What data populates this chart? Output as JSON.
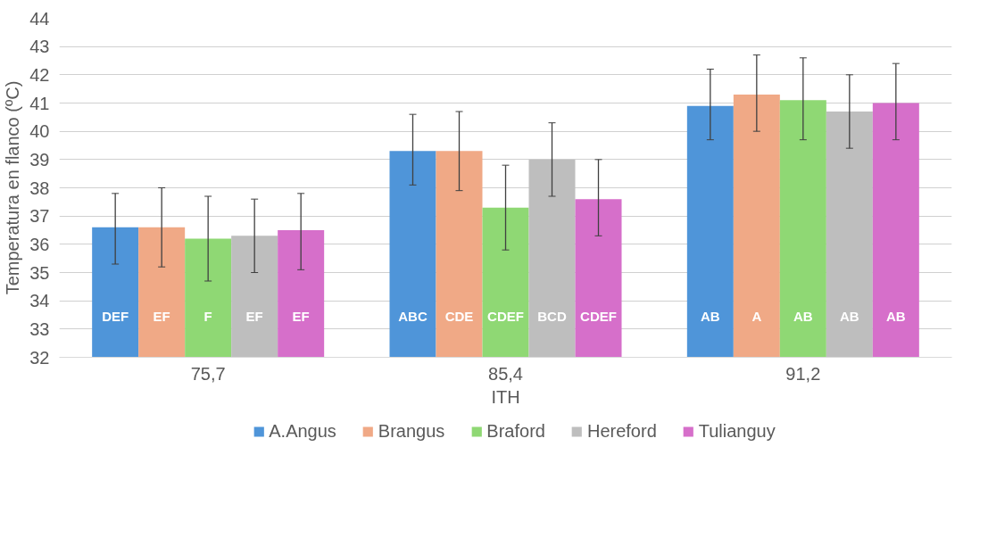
{
  "chart_data": {
    "type": "bar",
    "xlabel": "ITH",
    "ylabel": "Temperatura en flanco (ºC)",
    "categories": [
      "75,7",
      "85,4",
      "91,2"
    ],
    "ylim": [
      32,
      44
    ],
    "yticks": [
      32,
      33,
      34,
      35,
      36,
      37,
      38,
      39,
      40,
      41,
      42,
      43,
      44
    ],
    "grid": "y",
    "legend": "bottom",
    "series": [
      {
        "name": "A.Angus",
        "color": "#4f95d9",
        "values": [
          36.6,
          39.3,
          40.9
        ],
        "errors": [
          [
            35.3,
            37.8
          ],
          [
            38.1,
            40.6
          ],
          [
            39.7,
            42.2
          ]
        ],
        "value_labels": [
          "DEF",
          "ABC",
          "AB"
        ]
      },
      {
        "name": "Brangus",
        "color": "#f0a986",
        "values": [
          36.6,
          39.3,
          41.3
        ],
        "errors": [
          [
            35.2,
            38.0
          ],
          [
            37.9,
            40.7
          ],
          [
            40.0,
            42.7
          ]
        ],
        "value_labels": [
          "EF",
          "CDE",
          "A"
        ]
      },
      {
        "name": "Braford",
        "color": "#8fd874",
        "values": [
          36.2,
          37.3,
          41.1
        ],
        "errors": [
          [
            34.7,
            37.7
          ],
          [
            35.8,
            38.8
          ],
          [
            39.7,
            42.6
          ]
        ],
        "value_labels": [
          "F",
          "CDEF",
          "AB"
        ]
      },
      {
        "name": "Hereford",
        "color": "#bebebe",
        "values": [
          36.3,
          39.0,
          40.7
        ],
        "errors": [
          [
            35.0,
            37.6
          ],
          [
            37.7,
            40.3
          ],
          [
            39.4,
            42.0
          ]
        ],
        "value_labels": [
          "EF",
          "BCD",
          "AB"
        ]
      },
      {
        "name": "Tulianguy",
        "color": "#d66fca",
        "values": [
          36.5,
          37.6,
          41.0
        ],
        "errors": [
          [
            35.1,
            37.8
          ],
          [
            36.3,
            39.0
          ],
          [
            39.7,
            42.4
          ]
        ],
        "value_labels": [
          "EF",
          "CDEF",
          "AB"
        ]
      }
    ]
  }
}
